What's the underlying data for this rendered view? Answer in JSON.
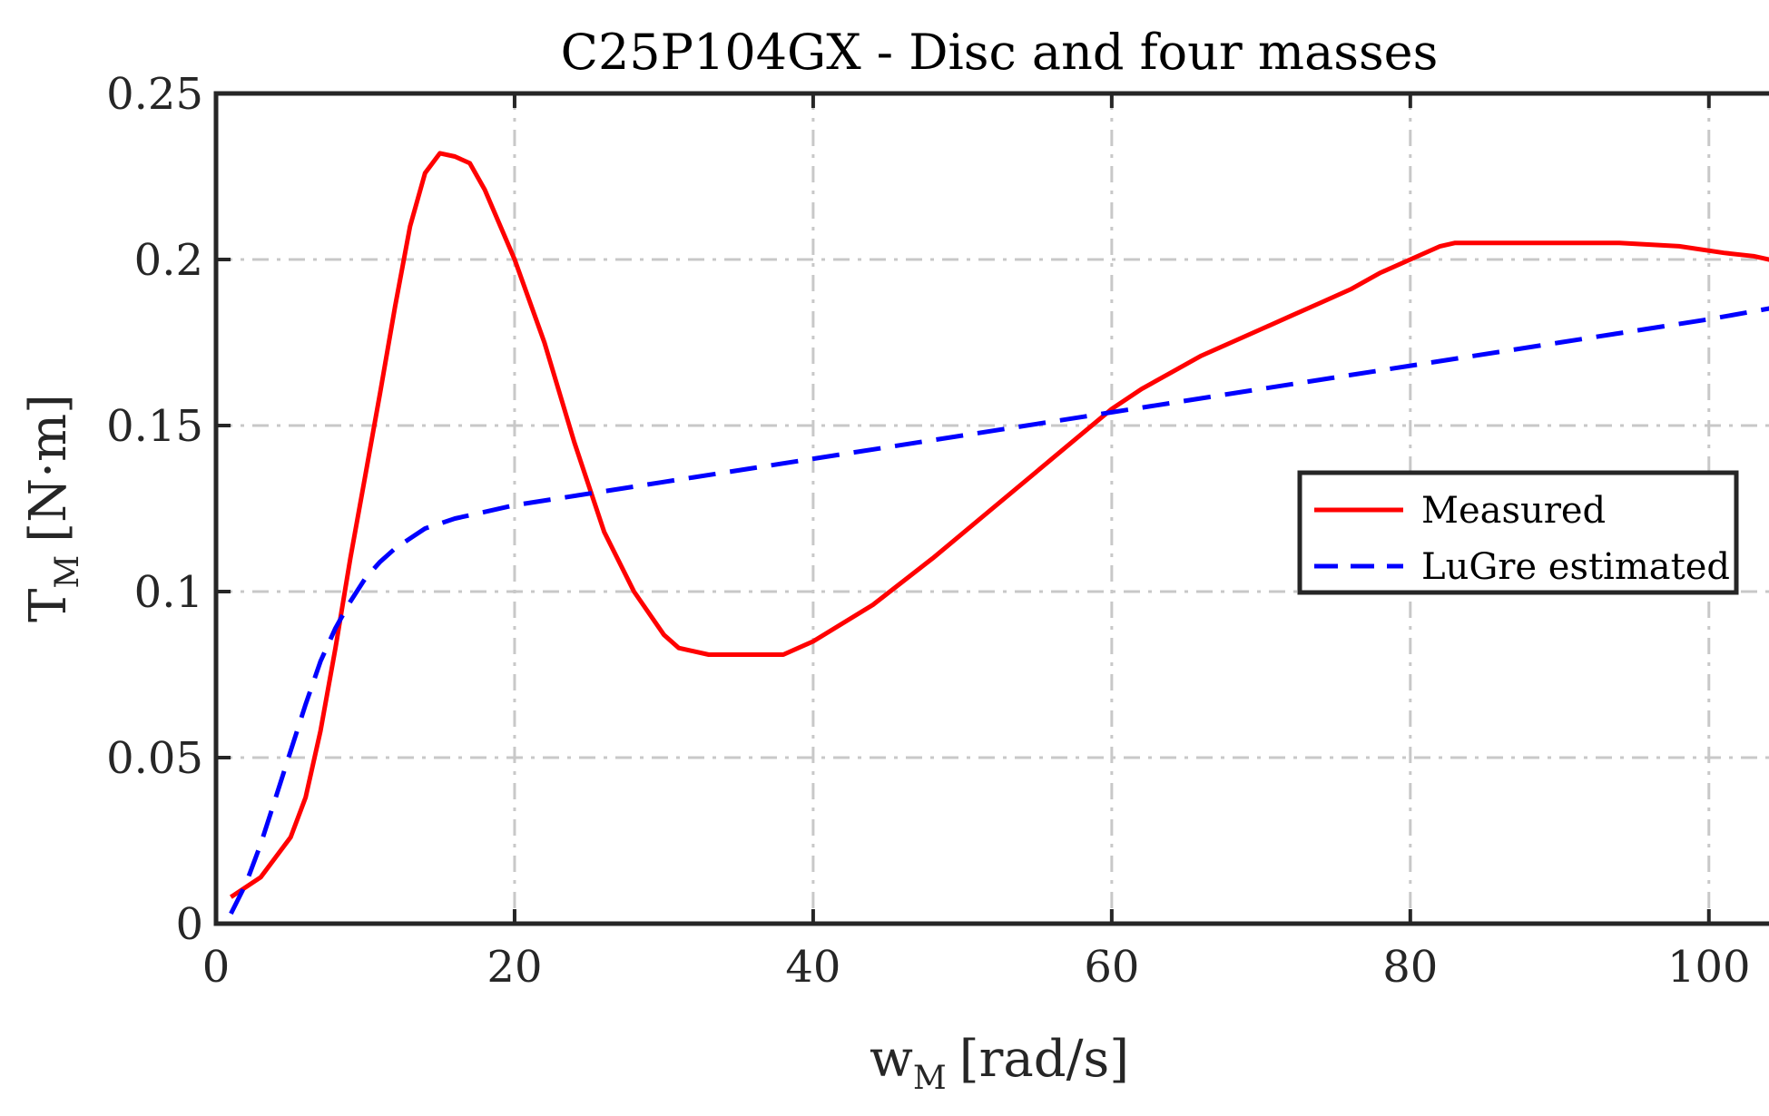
{
  "chart_data": {
    "type": "line",
    "title": "C25P104GX - Disc and four masses",
    "xlabel": {
      "main": "w",
      "sub": "M",
      "unit": "[rad/s]"
    },
    "ylabel": {
      "main": "T",
      "sub": "M",
      "unit": "[N·m]"
    },
    "xlim": [
      0,
      105
    ],
    "ylim": [
      0,
      0.25
    ],
    "xticks": [
      0,
      20,
      40,
      60,
      80,
      100
    ],
    "xtick_labels": [
      "0",
      "20",
      "40",
      "60",
      "80",
      "100"
    ],
    "yticks": [
      0,
      0.05,
      0.1,
      0.15,
      0.2,
      0.25
    ],
    "ytick_labels": [
      "0",
      "0.05",
      "0.1",
      "0.15",
      "0.2",
      "0.25"
    ],
    "grid": true,
    "legend_position": "right",
    "series": [
      {
        "name": "Measured",
        "color": "#ff0000",
        "style": "solid",
        "x": [
          1,
          3,
          5,
          6,
          7,
          8,
          9,
          10,
          11,
          12,
          13,
          14,
          15,
          16,
          17,
          18,
          20,
          22,
          24,
          26,
          28,
          30,
          31,
          33,
          35,
          37,
          38,
          40,
          44,
          48,
          52,
          56,
          60,
          62,
          64,
          66,
          68,
          70,
          72,
          74,
          76,
          78,
          80,
          82,
          83,
          86,
          90,
          94,
          98,
          101,
          103,
          105
        ],
        "y": [
          0.008,
          0.014,
          0.026,
          0.038,
          0.058,
          0.083,
          0.11,
          0.135,
          0.16,
          0.186,
          0.21,
          0.226,
          0.232,
          0.231,
          0.229,
          0.221,
          0.2,
          0.175,
          0.145,
          0.118,
          0.1,
          0.087,
          0.083,
          0.081,
          0.081,
          0.081,
          0.081,
          0.085,
          0.096,
          0.11,
          0.125,
          0.14,
          0.155,
          0.161,
          0.166,
          0.171,
          0.175,
          0.179,
          0.183,
          0.187,
          0.191,
          0.196,
          0.2,
          0.204,
          0.205,
          0.205,
          0.205,
          0.205,
          0.204,
          0.202,
          0.201,
          0.199
        ]
      },
      {
        "name": "LuGre estimated",
        "color": "#0000ff",
        "style": "dashed",
        "x": [
          1,
          2,
          3,
          4,
          5,
          6,
          7,
          8,
          9,
          10,
          11,
          12,
          13,
          14,
          16,
          18,
          20,
          30,
          40,
          50,
          60,
          70,
          80,
          90,
          100,
          105
        ],
        "y": [
          0.003,
          0.012,
          0.024,
          0.038,
          0.052,
          0.066,
          0.079,
          0.089,
          0.097,
          0.104,
          0.109,
          0.113,
          0.116,
          0.119,
          0.122,
          0.124,
          0.126,
          0.133,
          0.14,
          0.147,
          0.154,
          0.161,
          0.168,
          0.175,
          0.182,
          0.186
        ]
      }
    ]
  }
}
